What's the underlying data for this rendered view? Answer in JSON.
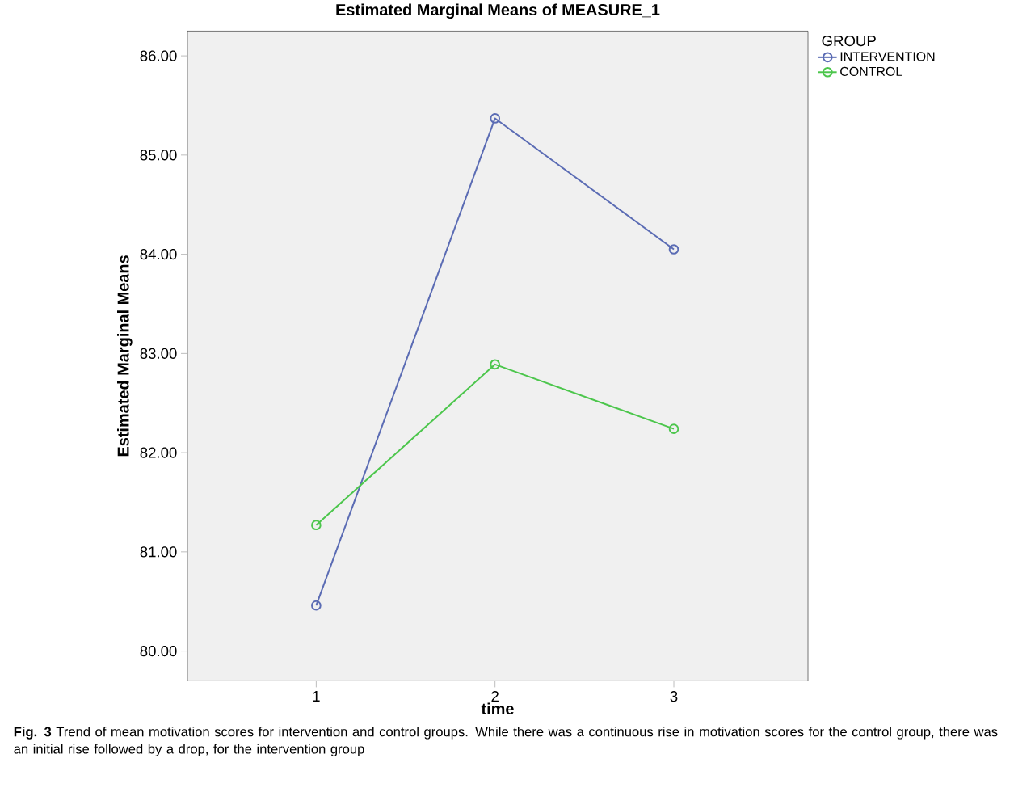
{
  "chart_data": {
    "type": "line",
    "title": "Estimated Marginal Means of MEASURE_1",
    "xlabel": "time",
    "ylabel": "Estimated Marginal Means",
    "legend_title": "GROUP",
    "x": [
      1,
      2,
      3
    ],
    "series": [
      {
        "name": "INTERVENTION",
        "color": "#5b6cb4",
        "values": [
          80.46,
          85.37,
          84.05
        ]
      },
      {
        "name": "CONTROL",
        "color": "#4cc64c",
        "values": [
          81.27,
          82.89,
          82.24
        ]
      }
    ],
    "xlim": [
      0.28,
      3.75
    ],
    "xticks": [
      1,
      2,
      3
    ],
    "ylim": [
      79.7,
      86.25
    ],
    "yticks": [
      {
        "value": 80,
        "label": "80.00"
      },
      {
        "value": 81,
        "label": "81.00"
      },
      {
        "value": 82,
        "label": "82.00"
      },
      {
        "value": 83,
        "label": "83.00"
      },
      {
        "value": 84,
        "label": "84.00"
      },
      {
        "value": 85,
        "label": "85.00"
      },
      {
        "value": 86,
        "label": "86.00"
      }
    ],
    "marker": "circle",
    "line_style": "solid",
    "grid": false,
    "legend": "top right",
    "annotations": [
      "**Fig. 3** Trend of mean motivation scores for intervention and control groups. While there was a continuous rise in motivation scores for the control group, there was an initial rise followed by a drop, for the intervention group"
    ]
  }
}
